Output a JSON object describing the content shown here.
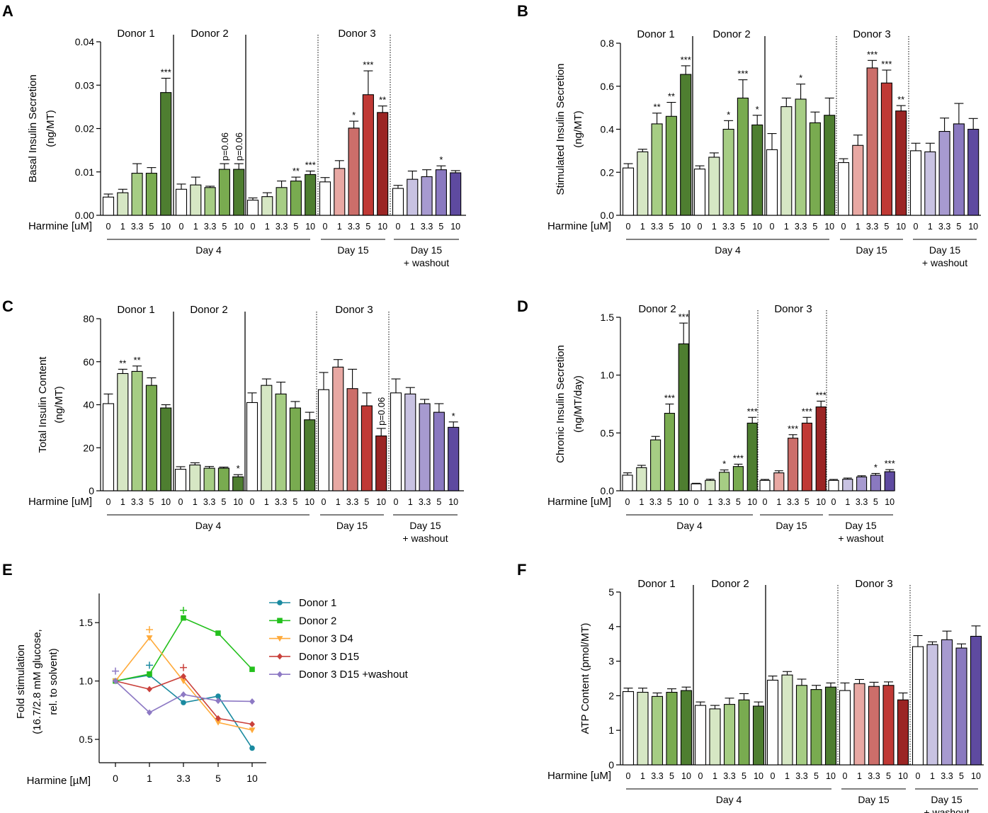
{
  "colors": {
    "white": "#ffffff",
    "g1": "#d6e7c4",
    "g2": "#a6cd84",
    "g3": "#79ab50",
    "g4": "#4e7e30",
    "r1": "#e8a8a3",
    "r2": "#cc6e6a",
    "r3": "#c03935",
    "r4": "#9b2524",
    "p1": "#c8c2e2",
    "p2": "#a79ad0",
    "p3": "#8a79c0",
    "p4": "#5e4aa0",
    "teal": "#1a8aa0",
    "green": "#23c01c",
    "orange": "#ffaa3a",
    "red": "#c9403b",
    "purple": "#8d79c4"
  },
  "chart_data": [
    {
      "panel": "A",
      "type": "bar",
      "ylabel": "Basal Insulin Secretion",
      "ylabel2": "(ng/MT)",
      "ylim": [
        0,
        0.04
      ],
      "yticks": [
        "0.00",
        "0.01",
        "0.02",
        "0.03",
        "0.04"
      ],
      "xlabel": "Harmine [uM]",
      "categories": [
        "0",
        "1",
        "3.3",
        "5",
        "10"
      ],
      "donors": [
        "Donor 1",
        "Donor 2",
        "Donor 3"
      ],
      "periods": [
        "Day 4",
        "Day 15",
        "Day 15",
        "+ washout"
      ],
      "series": [
        {
          "name": "Donor 1 Day 4",
          "values": [
            0.0042,
            0.0052,
            0.0097,
            0.0097,
            0.0283
          ],
          "errors": [
            0.0007,
            0.0008,
            0.0022,
            0.0013,
            0.0033
          ],
          "labels": [
            "",
            "",
            "",
            "",
            "***"
          ]
        },
        {
          "name": "Donor 2 Day 4",
          "values": [
            0.006,
            0.007,
            0.0064,
            0.0106,
            0.0106
          ],
          "errors": [
            0.0012,
            0.0018,
            0.0003,
            0.0013,
            0.0013
          ],
          "labels": [
            "",
            "",
            "",
            "p=0.06",
            "p=0.06"
          ]
        },
        {
          "name": "Donor 3 Day 4",
          "values": [
            0.0035,
            0.0043,
            0.0064,
            0.0079,
            0.0094
          ],
          "errors": [
            0.0005,
            0.0009,
            0.0015,
            0.0009,
            0.0008
          ],
          "labels": [
            "",
            "",
            "",
            "**",
            "***"
          ]
        },
        {
          "name": "Donor 3 Day 15",
          "values": [
            0.0077,
            0.0108,
            0.0201,
            0.0278,
            0.0237
          ],
          "errors": [
            0.001,
            0.0018,
            0.0016,
            0.0055,
            0.0015
          ],
          "labels": [
            "",
            "",
            "*",
            "***",
            "**"
          ]
        },
        {
          "name": "Donor 3 Day 15 + washout",
          "values": [
            0.0062,
            0.0083,
            0.0089,
            0.0105,
            0.0098
          ],
          "errors": [
            0.0007,
            0.0019,
            0.0016,
            0.0009,
            0.0005
          ],
          "labels": [
            "",
            "",
            "",
            "*",
            ""
          ]
        }
      ]
    },
    {
      "panel": "B",
      "type": "bar",
      "ylabel": "Stimulated Insulin Secretion",
      "ylabel2": "(ng/MT)",
      "ylim": [
        0,
        0.8
      ],
      "yticks": [
        "0.0",
        "0.2",
        "0.4",
        "0.6",
        "0.8"
      ],
      "xlabel": "Harmine [uM]",
      "categories": [
        "0",
        "1",
        "3.3",
        "5",
        "10"
      ],
      "donors": [
        "Donor 1",
        "Donor 2",
        "Donor 3"
      ],
      "periods": [
        "Day 4",
        "Day 15",
        "Day 15",
        "+ washout"
      ],
      "series": [
        {
          "name": "Donor 1 Day 4",
          "values": [
            0.22,
            0.295,
            0.425,
            0.46,
            0.655
          ],
          "errors": [
            0.02,
            0.012,
            0.05,
            0.065,
            0.04
          ],
          "labels": [
            "",
            "",
            "**",
            "**",
            "***"
          ]
        },
        {
          "name": "Donor 2 Day 4",
          "values": [
            0.215,
            0.27,
            0.4,
            0.545,
            0.42
          ],
          "errors": [
            0.015,
            0.02,
            0.04,
            0.085,
            0.045
          ],
          "labels": [
            "",
            "",
            "*",
            "***",
            "*"
          ]
        },
        {
          "name": "Donor 3 Day 4",
          "values": [
            0.305,
            0.505,
            0.54,
            0.43,
            0.465
          ],
          "errors": [
            0.075,
            0.04,
            0.07,
            0.05,
            0.08
          ],
          "labels": [
            "",
            "",
            "*",
            "",
            ""
          ]
        },
        {
          "name": "Donor 3 Day 15",
          "values": [
            0.245,
            0.325,
            0.685,
            0.615,
            0.485
          ],
          "errors": [
            0.018,
            0.048,
            0.035,
            0.06,
            0.025
          ],
          "labels": [
            "",
            "",
            "***",
            "***",
            "**"
          ]
        },
        {
          "name": "Donor 3 Day 15 + washout",
          "values": [
            0.3,
            0.295,
            0.39,
            0.425,
            0.4
          ],
          "errors": [
            0.035,
            0.04,
            0.062,
            0.095,
            0.05
          ],
          "labels": [
            "",
            "",
            "",
            "",
            ""
          ]
        }
      ]
    },
    {
      "panel": "C",
      "type": "bar",
      "ylabel": "Total Insulin Content",
      "ylabel2": "(ng/MT)",
      "ylim": [
        0,
        80
      ],
      "yticks": [
        "0",
        "20",
        "40",
        "60",
        "80"
      ],
      "xlabel": "Harmine [uM]",
      "categories": [
        "0",
        "1",
        "3.3",
        "5",
        "10"
      ],
      "donors": [
        "Donor 1",
        "Donor 2",
        "Donor 3"
      ],
      "periods": [
        "Day 4",
        "Day 15",
        "Day 15",
        "+ washout"
      ],
      "series": [
        {
          "name": "Donor 1 Day 4",
          "values": [
            40.5,
            54.5,
            55.5,
            49,
            38.5
          ],
          "errors": [
            4.5,
            2,
            2.5,
            3.5,
            1.5
          ],
          "labels": [
            "",
            "**",
            "**",
            "",
            ""
          ]
        },
        {
          "name": "Donor 2 Day 4",
          "values": [
            10,
            12,
            10.5,
            10.5,
            6.5
          ],
          "errors": [
            1.2,
            1,
            0.8,
            0.5,
            1
          ],
          "labels": [
            "",
            "",
            "",
            "",
            "*"
          ]
        },
        {
          "name": "Donor 3 Day 4",
          "values": [
            41,
            49,
            45,
            38.5,
            33
          ],
          "errors": [
            4.5,
            3,
            5.5,
            3,
            3.5
          ],
          "labels": [
            "",
            "",
            "",
            "",
            ""
          ]
        },
        {
          "name": "Donor 3 Day 15",
          "values": [
            47,
            57.5,
            47.5,
            39.5,
            25.5
          ],
          "errors": [
            8,
            3.5,
            9,
            6,
            3.5
          ],
          "labels": [
            "",
            "",
            "",
            "",
            "p=0.06"
          ]
        },
        {
          "name": "Donor 3 Day 15 + washout",
          "values": [
            45.5,
            45,
            40.5,
            36.5,
            29.5
          ],
          "errors": [
            6.5,
            3,
            2,
            4,
            2.5
          ],
          "labels": [
            "",
            "",
            "",
            "",
            "*"
          ]
        }
      ]
    },
    {
      "panel": "D",
      "type": "bar",
      "ylabel": "Chronic Insulin Secretion",
      "ylabel2": "(ng/MT/day)",
      "ylim": [
        0,
        1.5
      ],
      "yticks": [
        "0.0",
        "0.5",
        "1.0",
        "1.5"
      ],
      "xlabel": "Harmine [uM]",
      "categories": [
        "0",
        "1",
        "3.3",
        "5",
        "10"
      ],
      "donors": [
        "Donor 2",
        "Donor 3"
      ],
      "periods": [
        "Day 4",
        "Day 15",
        "Day 15",
        "+ washout"
      ],
      "series": [
        {
          "name": "Donor 2 Day 4",
          "values": [
            0.135,
            0.2,
            0.44,
            0.67,
            1.27
          ],
          "errors": [
            0.02,
            0.02,
            0.03,
            0.08,
            0.18
          ],
          "labels": [
            "",
            "",
            "",
            "***",
            "***"
          ]
        },
        {
          "name": "Donor 3 Day 4",
          "values": [
            0.06,
            0.09,
            0.16,
            0.21,
            0.585
          ],
          "errors": [
            0.005,
            0.01,
            0.02,
            0.02,
            0.05
          ],
          "labels": [
            "",
            "",
            "*",
            "***",
            "***"
          ]
        },
        {
          "name": "Donor 3 Day 15",
          "values": [
            0.09,
            0.155,
            0.455,
            0.585,
            0.725
          ],
          "errors": [
            0.008,
            0.018,
            0.03,
            0.05,
            0.05
          ],
          "labels": [
            "",
            "",
            "***",
            "***",
            "***"
          ]
        },
        {
          "name": "Donor 3 Day 15 + washout",
          "values": [
            0.09,
            0.1,
            0.12,
            0.135,
            0.165
          ],
          "errors": [
            0.008,
            0.01,
            0.01,
            0.015,
            0.018
          ],
          "labels": [
            "",
            "",
            "",
            "*",
            "***"
          ]
        }
      ]
    },
    {
      "panel": "E",
      "type": "line",
      "ylabel": "Fold stimulation",
      "ylabel2": "(16.7/2.8 mM glucose,",
      "ylabel3": "rel. to solvent)",
      "xlabel": "Harmine [µM]",
      "categories": [
        "0",
        "1",
        "3.3",
        "5",
        "10"
      ],
      "ylim": [
        0.3,
        1.75
      ],
      "yticks": [
        "0.5",
        "1.0",
        "1.5"
      ],
      "series": [
        {
          "name": "Donor 1",
          "values": [
            1.0,
            1.05,
            0.815,
            0.87,
            0.425
          ],
          "marker": "circle",
          "plus": [
            1,
            1.135
          ]
        },
        {
          "name": "Donor 2",
          "values": [
            1.0,
            1.06,
            1.54,
            1.41,
            1.1
          ],
          "marker": "square",
          "plus": [
            2,
            1.605
          ]
        },
        {
          "name": "Donor 3 D4",
          "values": [
            1.0,
            1.37,
            1.0,
            0.645,
            0.58
          ],
          "marker": "triangle",
          "plus": [
            1,
            1.44
          ]
        },
        {
          "name": "Donor 3 D15",
          "values": [
            1.0,
            0.93,
            1.04,
            0.68,
            0.63
          ],
          "marker": "diamond",
          "plus": [
            2,
            1.115
          ]
        },
        {
          "name": "Donor 3 D15 +washout",
          "values": [
            1.0,
            0.73,
            0.885,
            0.83,
            0.825
          ],
          "marker": "diamond",
          "plus": [
            0,
            1.085
          ]
        }
      ]
    },
    {
      "panel": "F",
      "type": "bar",
      "ylabel": "ATP Content (pmol/MT)",
      "ylim": [
        0,
        5
      ],
      "yticks": [
        "0",
        "1",
        "2",
        "3",
        "4",
        "5"
      ],
      "xlabel": "Harmine [uM]",
      "categories": [
        "0",
        "1",
        "3.3",
        "5",
        "10"
      ],
      "donors": [
        "Donor 1",
        "Donor 2",
        "Donor 3"
      ],
      "periods": [
        "Day 4",
        "Day 15",
        "Day 15",
        "+ washout"
      ],
      "series": [
        {
          "name": "Donor 1 Day 4",
          "values": [
            2.12,
            2.1,
            1.98,
            2.1,
            2.15
          ],
          "errors": [
            0.1,
            0.12,
            0.1,
            0.1,
            0.1
          ],
          "labels": [
            "",
            "",
            "",
            "",
            ""
          ]
        },
        {
          "name": "Donor 2 Day 4",
          "values": [
            1.72,
            1.62,
            1.75,
            1.88,
            1.7
          ],
          "errors": [
            0.1,
            0.1,
            0.18,
            0.18,
            0.12
          ],
          "labels": [
            "",
            "",
            "",
            "",
            ""
          ]
        },
        {
          "name": "Donor 3 Day 4",
          "values": [
            2.45,
            2.6,
            2.3,
            2.18,
            2.25
          ],
          "errors": [
            0.12,
            0.1,
            0.18,
            0.12,
            0.12
          ],
          "labels": [
            "",
            "",
            "",
            "",
            ""
          ]
        },
        {
          "name": "Donor 3 Day 15",
          "values": [
            2.15,
            2.35,
            2.27,
            2.3,
            1.88
          ],
          "errors": [
            0.22,
            0.12,
            0.12,
            0.1,
            0.2
          ],
          "labels": [
            "",
            "",
            "",
            "",
            ""
          ]
        },
        {
          "name": "Donor 3 Day 15 + washout",
          "values": [
            3.42,
            3.48,
            3.62,
            3.38,
            3.72
          ],
          "errors": [
            0.32,
            0.08,
            0.25,
            0.12,
            0.3
          ],
          "labels": [
            "",
            "",
            "",
            "",
            ""
          ]
        }
      ]
    }
  ]
}
